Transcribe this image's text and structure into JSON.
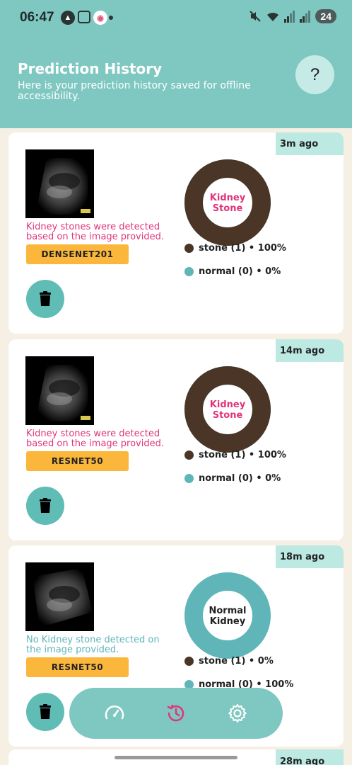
{
  "status_bar": {
    "time": "06:47",
    "battery": "24",
    "left_icons": [
      "a-icon",
      "scan-icon",
      "app-icon"
    ]
  },
  "header": {
    "title": "Prediction History",
    "subtitle": "Here is your prediction history saved for offline accessibility.",
    "help_label": "?"
  },
  "colors": {
    "header_bg": "#7fc8c1",
    "stone": "#4a3526",
    "normal": "#5fb5b8",
    "pink_text": "#e0357a",
    "teal_text": "#5fb5b8",
    "model_badge": "#fbb63c"
  },
  "history": [
    {
      "time_ago": "3m ago",
      "result_text": "Kidney stones were detected based on the image provided.",
      "model": "DENSENET201",
      "donut_label_line1": "Kidney",
      "donut_label_line2": "Stone",
      "stone_fraction": 1.0,
      "legend_stone": "stone (1) • 100%",
      "legend_normal": "normal (0) • 0%"
    },
    {
      "time_ago": "14m ago",
      "result_text": "Kidney stones were detected based on the image provided.",
      "model": "RESNET50",
      "donut_label_line1": "Kidney",
      "donut_label_line2": "Stone",
      "stone_fraction": 1.0,
      "legend_stone": "stone (1) • 100%",
      "legend_normal": "normal (0) • 0%"
    },
    {
      "time_ago": "18m ago",
      "result_text": "No Kidney stone detected on the image provided.",
      "model": "RESNET50",
      "donut_label_line1": "Normal",
      "donut_label_line2": "Kidney",
      "stone_fraction": 0.0,
      "legend_stone": "stone (1) • 0%",
      "legend_normal": "normal (0) • 100%"
    }
  ],
  "peek_card": {
    "time_ago": "28m ago"
  },
  "nav": {
    "items": [
      "speedometer-icon",
      "history-icon",
      "settings-icon"
    ],
    "active": "history-icon"
  }
}
